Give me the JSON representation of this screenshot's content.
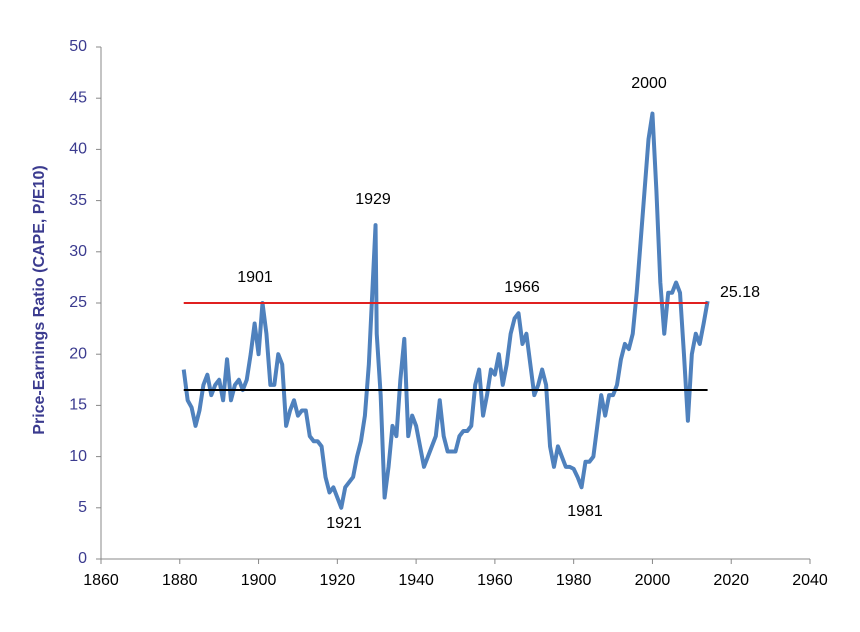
{
  "chart_data": {
    "type": "line",
    "y_label": "Price-Earnings Ratio (CAPE, P/E10)",
    "xlim": [
      1860,
      2040
    ],
    "xticks": [
      1860,
      1880,
      1900,
      1920,
      1940,
      1960,
      1980,
      2000,
      2020,
      2040
    ],
    "ylim": [
      0,
      50
    ],
    "yticks": [
      0,
      5,
      10,
      15,
      20,
      25,
      30,
      35,
      40,
      45,
      50
    ],
    "grid": false,
    "x": [
      1881,
      1881.5,
      1882,
      1883,
      1884,
      1885,
      1886,
      1887,
      1888,
      1889,
      1890,
      1891,
      1892,
      1893,
      1894,
      1895,
      1896,
      1897,
      1898,
      1899,
      1900,
      1901,
      1902,
      1903,
      1904,
      1905,
      1906,
      1907,
      1908,
      1909,
      1910,
      1911,
      1912,
      1913,
      1914,
      1915,
      1916,
      1917,
      1918,
      1919,
      1920,
      1921,
      1922,
      1923,
      1924,
      1925,
      1926,
      1927,
      1928,
      1929,
      1929.7,
      1930,
      1931,
      1932,
      1933,
      1934,
      1935,
      1936,
      1937,
      1938,
      1939,
      1940,
      1941,
      1942,
      1943,
      1944,
      1945,
      1946,
      1947,
      1948,
      1949,
      1950,
      1951,
      1952,
      1953,
      1954,
      1955,
      1956,
      1957,
      1958,
      1959,
      1960,
      1961,
      1962,
      1963,
      1964,
      1965,
      1966,
      1967,
      1968,
      1969,
      1970,
      1971,
      1972,
      1973,
      1974,
      1975,
      1976,
      1977,
      1978,
      1979,
      1980,
      1981,
      1982,
      1983,
      1984,
      1985,
      1986,
      1987,
      1988,
      1989,
      1990,
      1991,
      1992,
      1993,
      1994,
      1995,
      1996,
      1997,
      1998,
      1999,
      2000,
      2001,
      2002,
      2003,
      2004,
      2005,
      2006,
      2007,
      2008,
      2009,
      2010,
      2011,
      2012,
      2013,
      2014
    ],
    "series": [
      {
        "color": "#4f81bd",
        "values": [
          18.5,
          17,
          15.5,
          14.8,
          13,
          14.5,
          17,
          18,
          16,
          17,
          17.5,
          15.5,
          19.5,
          15.5,
          17,
          17.5,
          16.5,
          17.5,
          20,
          23,
          20,
          25,
          22,
          17,
          17,
          20,
          19,
          13,
          14.5,
          15.5,
          14,
          14.5,
          14.5,
          12,
          11.5,
          11.5,
          11,
          8,
          6.5,
          7,
          6,
          5,
          7,
          7.5,
          8,
          10,
          11.5,
          14,
          19,
          27,
          32.6,
          22,
          16,
          6,
          9,
          13,
          12,
          17.5,
          21.5,
          12,
          14,
          13,
          11,
          9,
          10,
          11,
          12,
          15.5,
          12,
          10.5,
          10.5,
          10.5,
          12,
          12.5,
          12.5,
          13,
          17,
          18.5,
          14,
          16,
          18.5,
          18,
          20,
          17,
          19,
          22,
          23.5,
          24,
          21,
          22,
          19,
          16,
          17,
          18.5,
          17,
          11,
          9,
          11,
          10,
          9,
          9,
          8.8,
          8,
          7,
          9.5,
          9.5,
          10,
          13,
          16,
          14,
          16,
          16,
          17,
          19.5,
          21,
          20.5,
          22,
          26,
          31,
          36,
          41,
          43.5,
          36,
          27,
          22,
          26,
          26,
          27,
          26,
          20,
          13.5,
          20,
          22,
          21,
          23,
          25.18
        ]
      }
    ],
    "reference_lines": [
      {
        "value": 25,
        "color": "#e02020",
        "x": [
          1881,
          2014
        ]
      },
      {
        "value": 16.5,
        "color": "#000000",
        "x": [
          1881,
          2014
        ]
      }
    ],
    "annotations": [
      "1901",
      "1929",
      "1921",
      "1966",
      "1981",
      "2000",
      "25.18"
    ]
  }
}
